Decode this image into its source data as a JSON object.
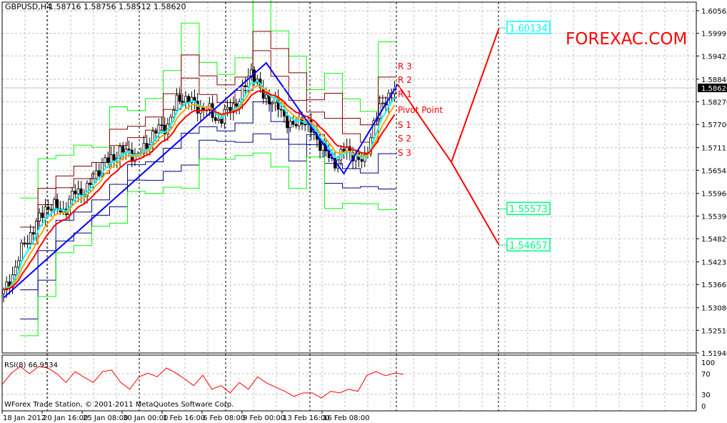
{
  "header": {
    "symbol": "GBPUSD,H4",
    "ohlc": "1.58716 1.58756 1.58512 1.58620"
  },
  "watermark": "FOREXAC.COM",
  "copyright": "WForex Trade Station, © 2001-2011 MetaQuotes Software Corp.",
  "colors": {
    "candles": "#000000",
    "zigzag": "#0000ff",
    "projection": "#ff0000",
    "outer_band": "#00ff00",
    "upper_band": "#800000",
    "lower_band": "#000080",
    "ma_fast": "#00ffff",
    "ma_mid": "#ffa500",
    "ma_slow": "#ff0000",
    "rsi": "#ff0000",
    "watermark": "#ff0000",
    "target_up": "#00ffff",
    "target_down": "#00ff7f"
  },
  "chart_data": {
    "type": "candlestick",
    "ylim": [
      1.5194,
      1.60565
    ],
    "y_ticks": [
      "1.60565",
      "1.59995",
      "1.59425",
      "1.58840",
      "1.58270",
      "1.57700",
      "1.57115",
      "1.56545",
      "1.55960",
      "1.55390",
      "1.54820",
      "1.54235",
      "1.53665",
      "1.53080",
      "1.52510",
      "1.51940"
    ],
    "current_price": "1.58620",
    "x_ticks": [
      "18 Jan 2012",
      "20 Jan 16:00",
      "25 Jan 08:00",
      "30 Jan 00:00",
      "1 Feb 16:00",
      "6 Feb 08:00",
      "9 Feb 00:00",
      "13 Feb 16:00",
      "16 Feb 08:00"
    ],
    "bars": 132,
    "close_path": [
      1.5345,
      1.5399,
      1.5471,
      1.5507,
      1.5561,
      1.5561,
      1.5552,
      1.5606,
      1.5597,
      1.5651,
      1.5678,
      1.5696,
      1.5705,
      1.5687,
      1.5723,
      1.5759,
      1.5768,
      1.584,
      1.5831,
      1.5813,
      1.5804,
      1.5777,
      1.5813,
      1.5831,
      1.5912,
      1.5849,
      1.5831,
      1.5804,
      1.5759,
      1.5786,
      1.575,
      1.5714,
      1.5669,
      1.5705,
      1.5696,
      1.5669,
      1.5777,
      1.5831,
      1.5862
    ],
    "zigzag": [
      [
        0,
        1.5333
      ],
      [
        88,
        1.5925
      ],
      [
        114,
        1.5646
      ],
      [
        132,
        1.5871
      ]
    ],
    "projection": {
      "path_up": [
        [
          132,
          1.5871
        ],
        [
          150,
          1.5675
        ],
        [
          166,
          1.60134
        ]
      ],
      "path_down": [
        [
          150,
          1.5675
        ],
        [
          166,
          1.54657
        ]
      ],
      "targets": [
        "1.60134",
        "1.55573",
        "1.54657"
      ]
    },
    "pivot_labels": [
      {
        "label": "R 3",
        "price": 1.5918
      },
      {
        "label": "R 2",
        "price": 1.5884
      },
      {
        "label": "R 1",
        "price": 1.5848
      },
      {
        "label": "Pivot Point",
        "price": 1.5808
      },
      {
        "label": "S 1",
        "price": 1.577
      },
      {
        "label": "S 2",
        "price": 1.5736
      },
      {
        "label": "S 3",
        "price": 1.57
      }
    ],
    "rsi": {
      "label": "RSI(8) 66.9534",
      "ticks": [
        "100",
        "70",
        "30",
        "0"
      ],
      "values": [
        49,
        71,
        84,
        70,
        84,
        81,
        70,
        53,
        74,
        63,
        53,
        74,
        77,
        53,
        40,
        64,
        71,
        64,
        81,
        72,
        60,
        47,
        67,
        40,
        47,
        33,
        53,
        40,
        64,
        52,
        44,
        36,
        26,
        33,
        33,
        23,
        36,
        33,
        40,
        36,
        67,
        74,
        66,
        71,
        69
      ]
    }
  }
}
